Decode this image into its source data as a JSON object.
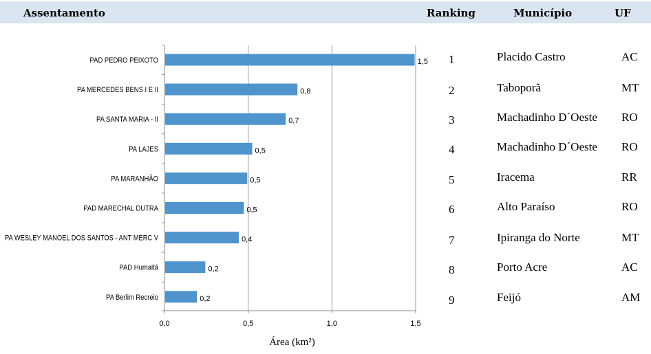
{
  "header": {
    "assentamento": "Assentamento",
    "ranking": "Ranking",
    "municipio": "Município",
    "uf": "UF"
  },
  "chart_data": {
    "type": "bar",
    "orientation": "horizontal",
    "categories": [
      "PAD PEDRO PEIXOTO",
      "PA MERCEDES BENS I E II",
      "PA SANTA MARIA - II",
      "PA LAJES",
      "PA MARANHÃO",
      "PAD MARECHAL DUTRA",
      "PA WESLEY MANOEL DOS SANTOS - ANT MERC V",
      "PAD Humaitá",
      "PA Berlim Recreio"
    ],
    "values": [
      1.49,
      0.79,
      0.72,
      0.52,
      0.49,
      0.47,
      0.44,
      0.24,
      0.19
    ],
    "data_labels": [
      "1,5",
      "0,8",
      "0,7",
      "0,5",
      "0,5",
      "0,5",
      "0,4",
      "0,2",
      "0,2"
    ],
    "xlim": [
      0,
      1.5
    ],
    "xticks": [
      0,
      0.5,
      1.0,
      1.5
    ],
    "xtick_labels": [
      "0,0",
      "0,5",
      "1,0",
      "1,5"
    ],
    "xlabel": "Área (km²)",
    "grid": "vertical",
    "bar_color": "#4f94cd",
    "grid_color": "#999999"
  },
  "table": {
    "rows": [
      {
        "ranking": "1",
        "municipio": "Placido Castro",
        "uf": "AC"
      },
      {
        "ranking": "2",
        "municipio": "Taboporã",
        "uf": "MT"
      },
      {
        "ranking": "3",
        "municipio": "Machadinho D´Oeste",
        "uf": "RO"
      },
      {
        "ranking": "4",
        "municipio": "Machadinho D´Oeste",
        "uf": "RO"
      },
      {
        "ranking": "5",
        "municipio": "Iracema",
        "uf": "RR"
      },
      {
        "ranking": "6",
        "municipio": "Alto Paraíso",
        "uf": "RO"
      },
      {
        "ranking": "7",
        "municipio": "Ipiranga do Norte",
        "uf": "MT"
      },
      {
        "ranking": "8",
        "municipio": "Porto Acre",
        "uf": "AC"
      },
      {
        "ranking": "9",
        "municipio": "Feijó",
        "uf": "AM"
      }
    ]
  }
}
